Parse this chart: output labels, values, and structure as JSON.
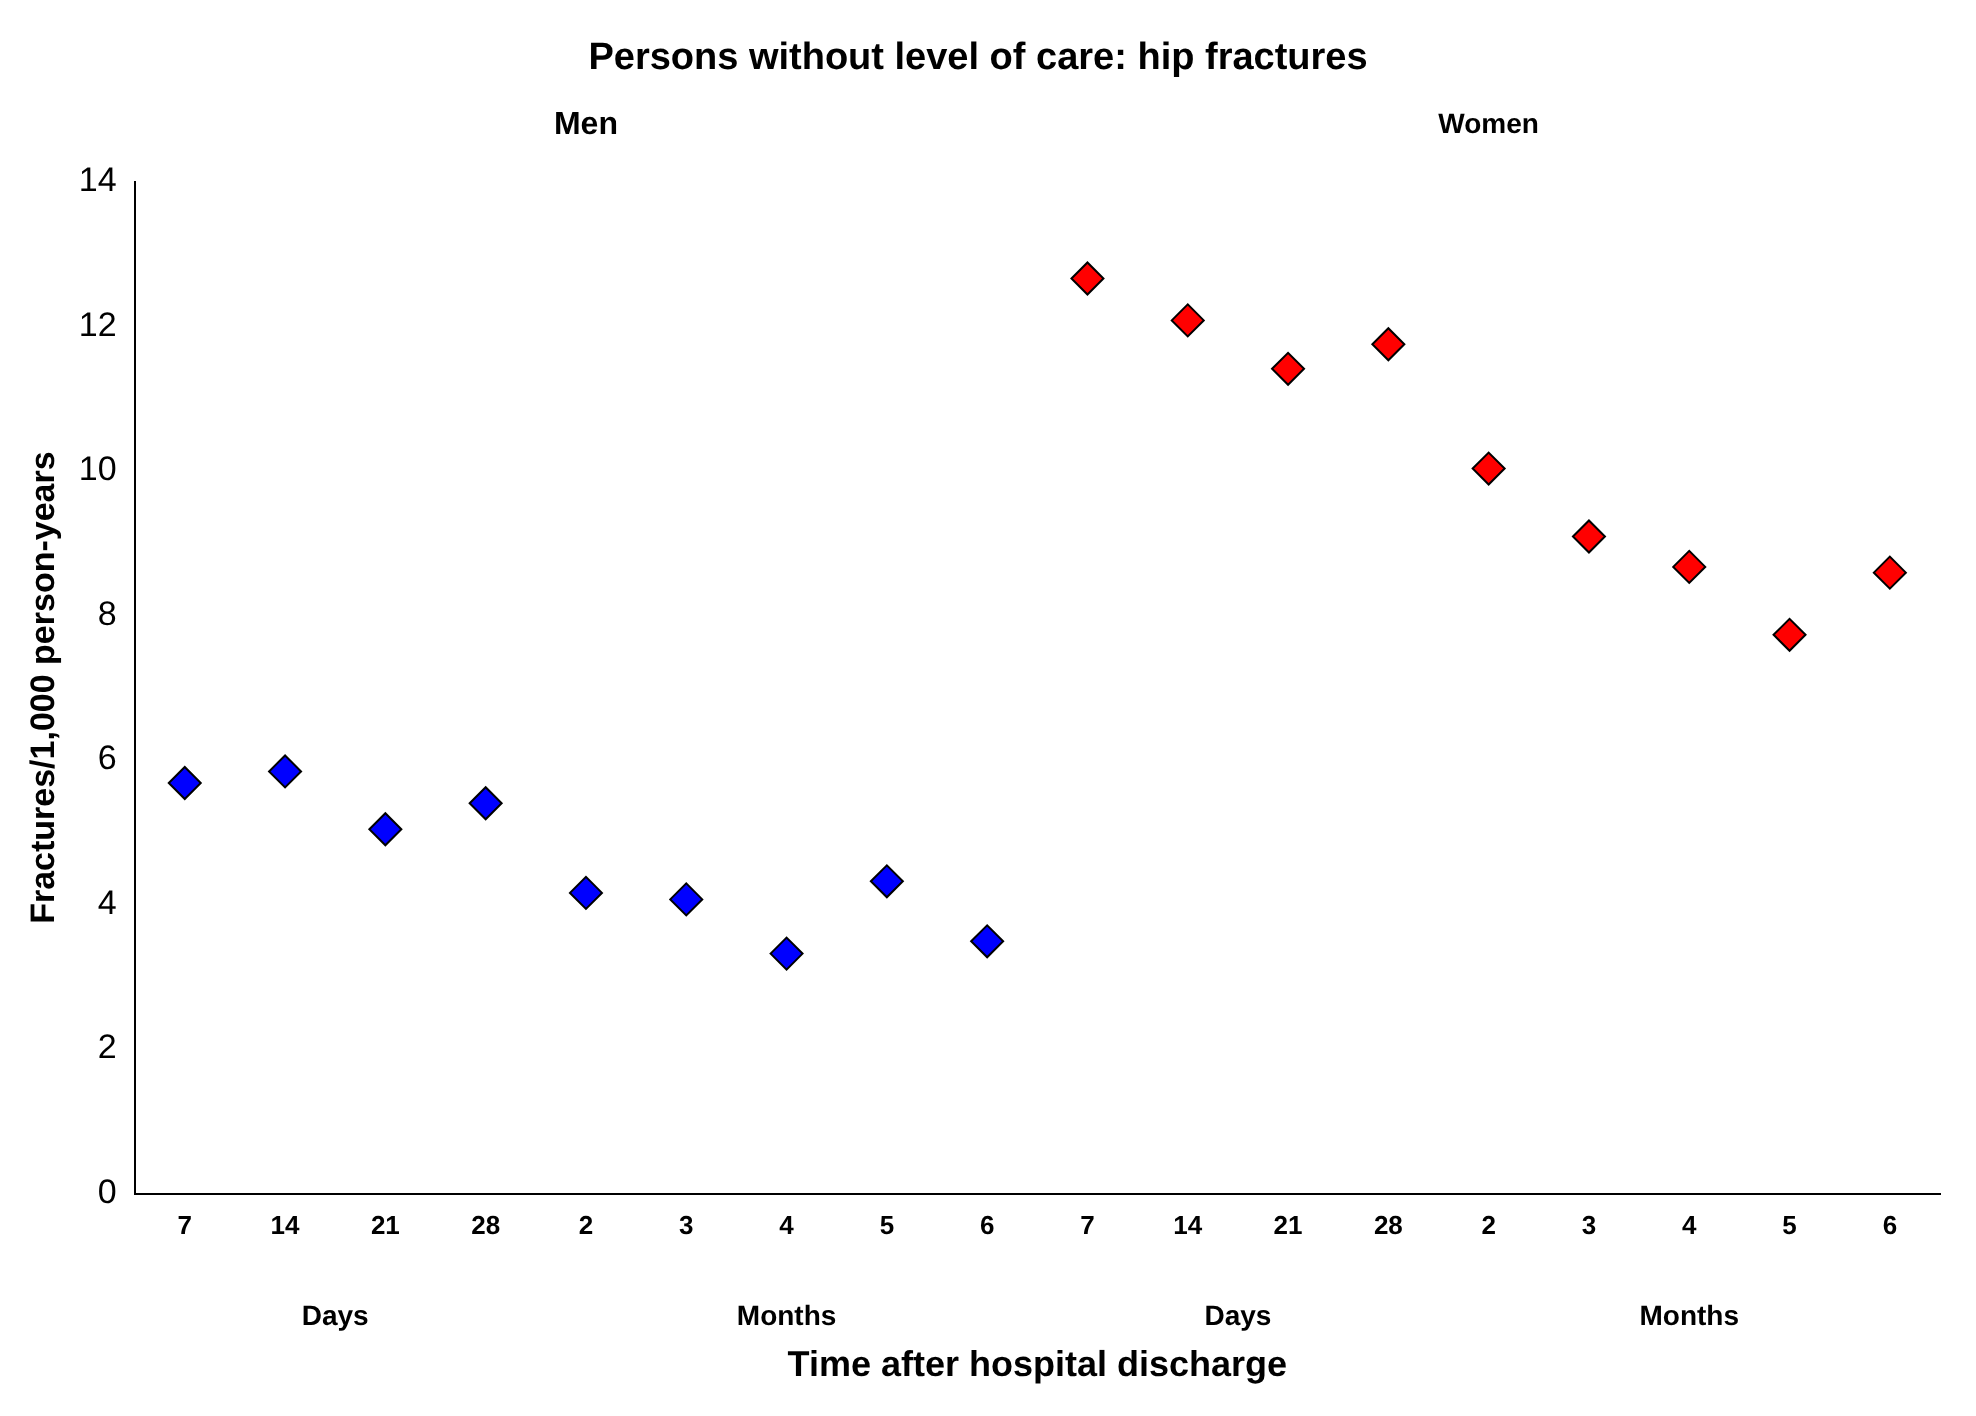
{
  "chart_data": {
    "type": "scatter",
    "title": "Persons without level of care: hip fractures",
    "xlabel": "Time after hospital discharge",
    "ylabel": "Fractures/1,000 person-years",
    "categories": [
      "7",
      "14",
      "21",
      "28",
      "2",
      "3",
      "4",
      "5",
      "6",
      "7",
      "14",
      "21",
      "28",
      "2",
      "3",
      "4",
      "5",
      "6"
    ],
    "series": [
      {
        "color": "#0000ff",
        "values": [
          5.68,
          5.84,
          5.04,
          5.4,
          4.16,
          4.07,
          3.32,
          4.32,
          3.49,
          null,
          null,
          null,
          null,
          null,
          null,
          null,
          null,
          null
        ]
      },
      {
        "color": "#ff0000",
        "values": [
          null,
          null,
          null,
          null,
          null,
          null,
          null,
          null,
          null,
          12.66,
          12.08,
          11.41,
          11.75,
          10.03,
          9.09,
          8.67,
          7.73,
          8.59
        ]
      }
    ],
    "annotations": [
      "Men",
      "Women",
      "Days",
      "Months",
      "Days",
      "Months"
    ],
    "ylim": [
      0,
      14
    ],
    "yticks": [
      0,
      2,
      4,
      6,
      8,
      10,
      12,
      14
    ],
    "marker": "diamond",
    "legend": false,
    "grid": false
  }
}
